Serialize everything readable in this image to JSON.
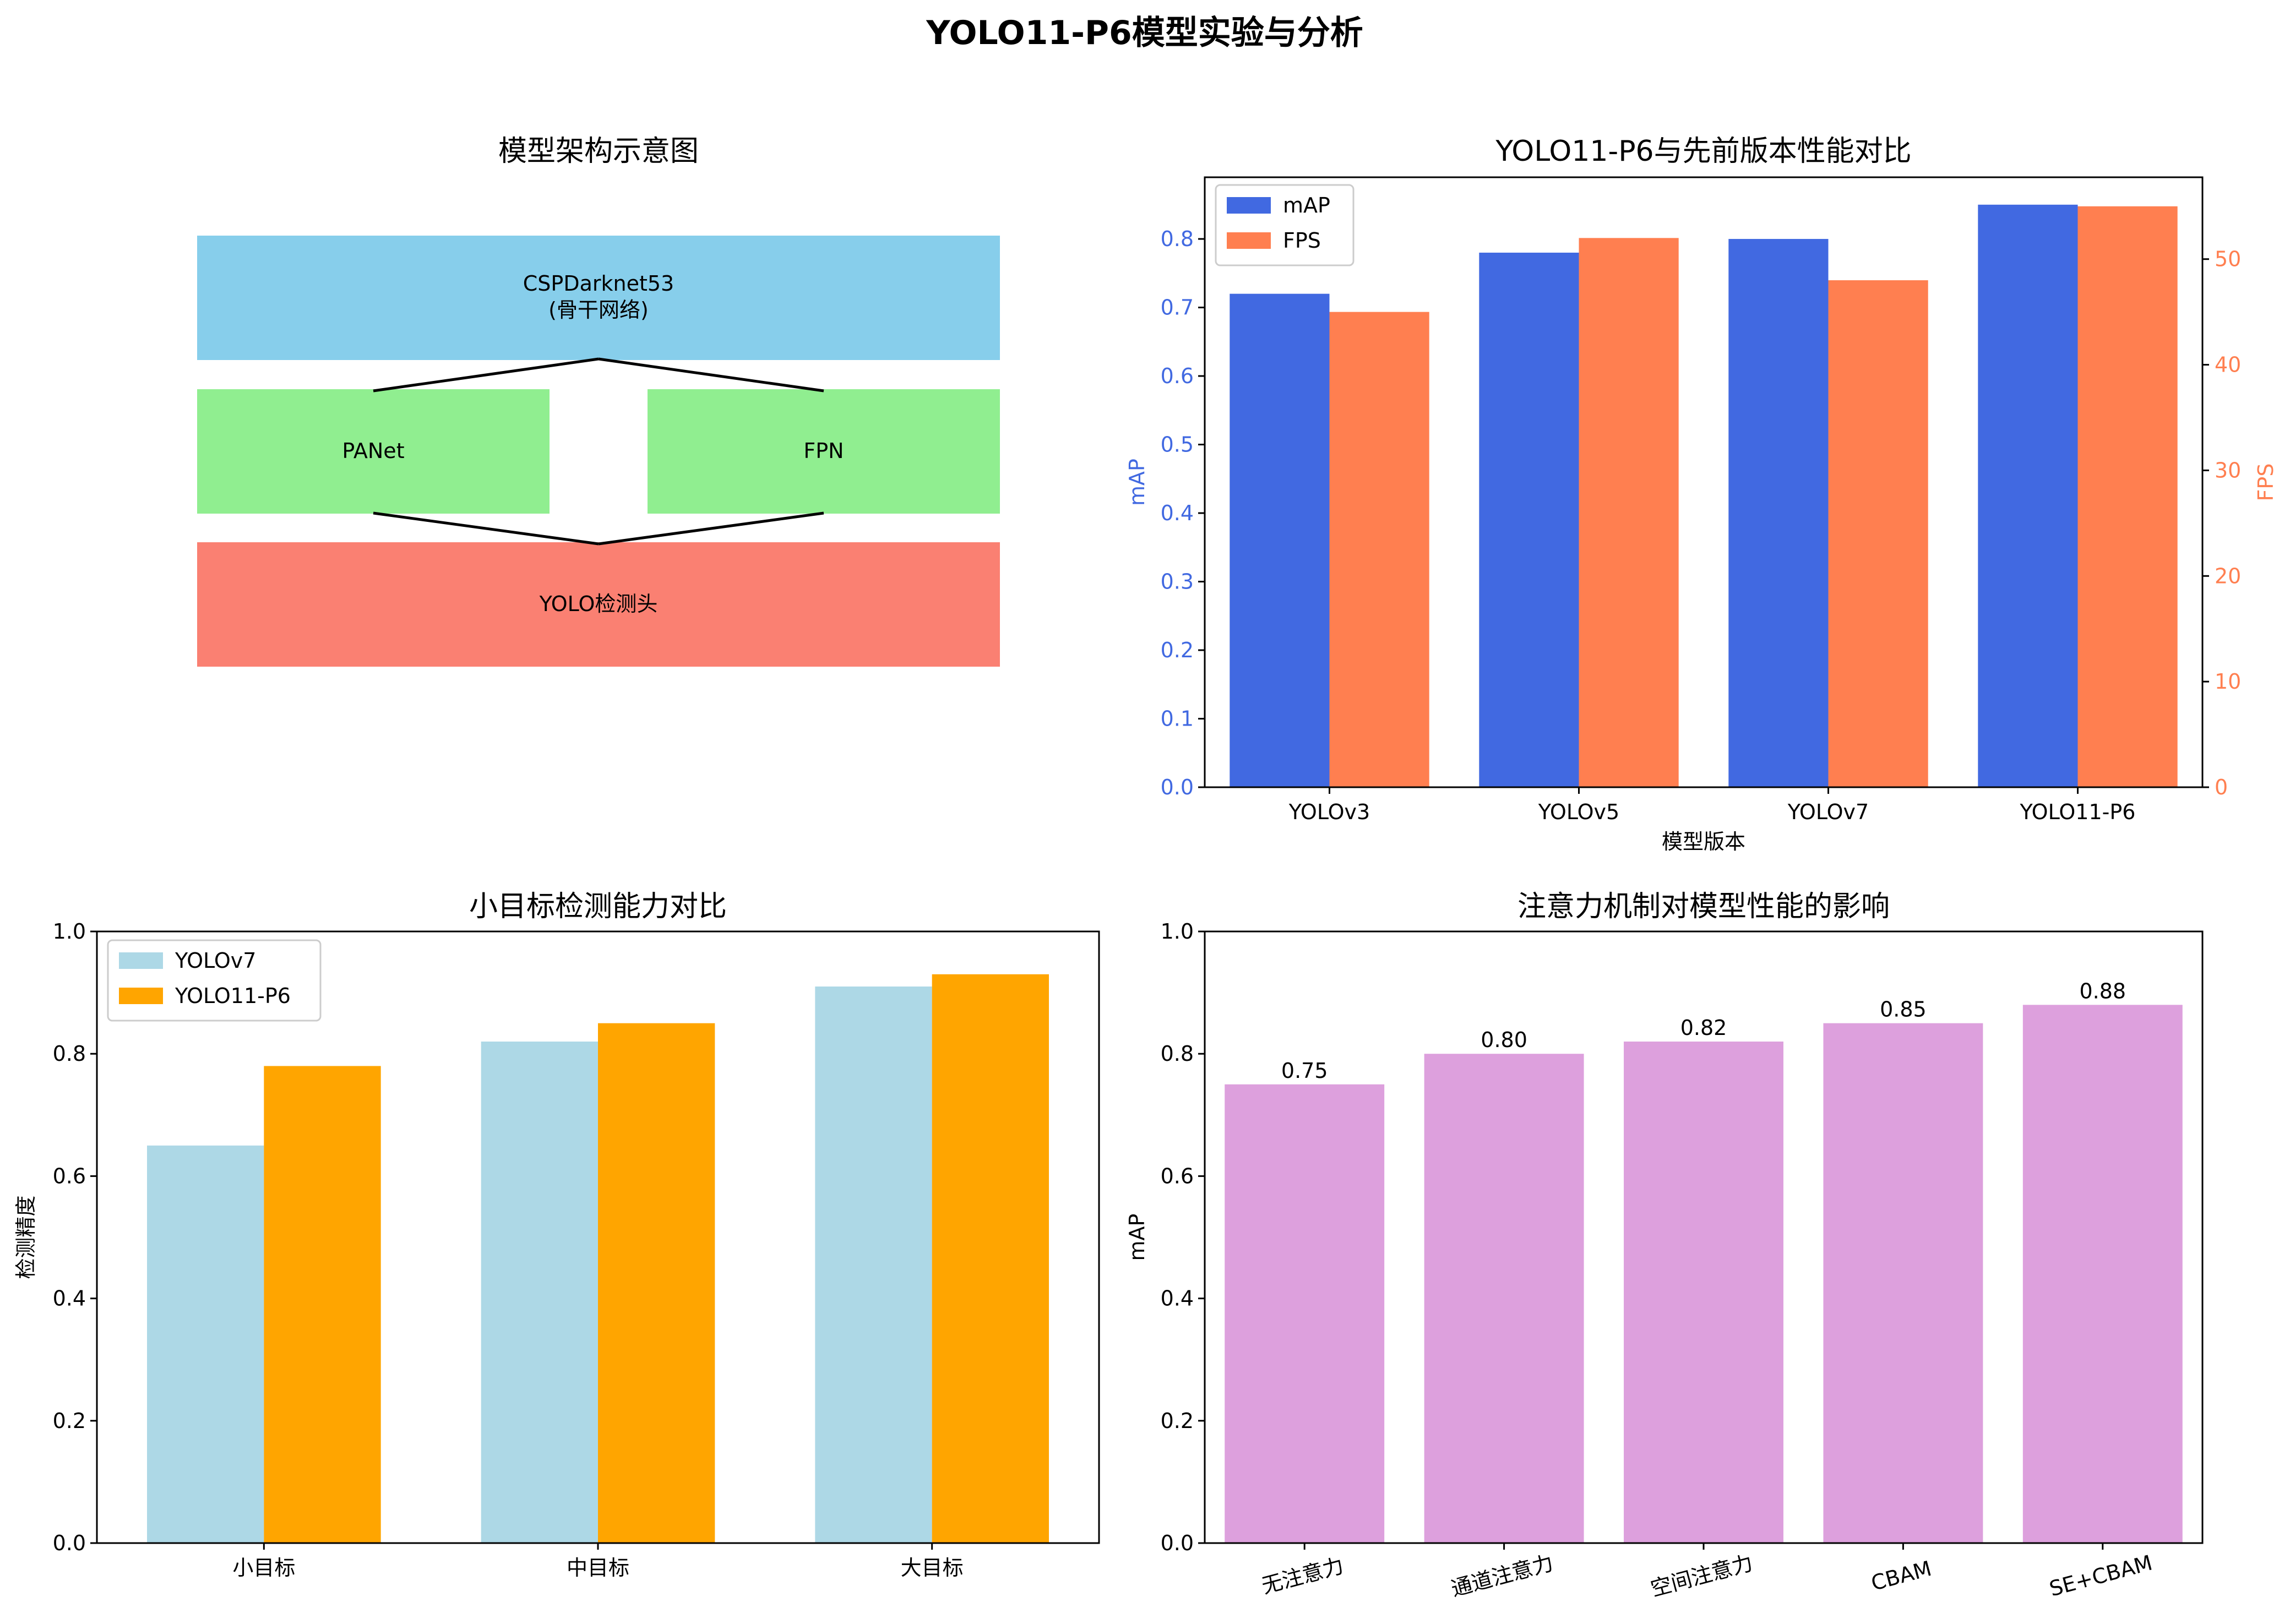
{
  "suptitle": "YOLO11-P6模型实验与分析",
  "architecture": {
    "title": "模型架构示意图",
    "boxes": [
      {
        "id": "backbone",
        "line1": "CSPDarknet53",
        "line2": "(骨干网络)",
        "color": "#87CEEB"
      },
      {
        "id": "panet",
        "line1": "PANet",
        "line2": "",
        "color": "#90EE90"
      },
      {
        "id": "fpn",
        "line1": "FPN",
        "line2": "",
        "color": "#90EE90"
      },
      {
        "id": "head",
        "line1": "YOLO检测头",
        "line2": "",
        "color": "#FA8072"
      }
    ]
  },
  "chart_data": [
    {
      "id": "performance",
      "type": "bar",
      "title": "YOLO11-P6与先前版本性能对比",
      "xlabel": "模型版本",
      "ylabel": "mAP",
      "y2label": "FPS",
      "categories": [
        "YOLOv3",
        "YOLOv5",
        "YOLOv7",
        "YOLO11-P6"
      ],
      "series": [
        {
          "name": "mAP",
          "axis": "left",
          "values": [
            0.72,
            0.78,
            0.8,
            0.85
          ],
          "color": "#4169E1"
        },
        {
          "name": "FPS",
          "axis": "right",
          "values": [
            45,
            52,
            48,
            55
          ],
          "color": "#FF7F50"
        }
      ],
      "ylim": [
        0,
        0.89
      ],
      "y2lim": [
        0,
        57.75
      ],
      "yticks": [
        "0.0",
        "0.1",
        "0.2",
        "0.3",
        "0.4",
        "0.5",
        "0.6",
        "0.7",
        "0.8"
      ],
      "y2ticks": [
        "0",
        "10",
        "20",
        "30",
        "40",
        "50"
      ],
      "legend": "upper-left",
      "grid": false
    },
    {
      "id": "small-object",
      "type": "bar",
      "title": "小目标检测能力对比",
      "xlabel": "",
      "ylabel": "检测精度",
      "categories": [
        "小目标",
        "中目标",
        "大目标"
      ],
      "series": [
        {
          "name": "YOLOv7",
          "values": [
            0.65,
            0.82,
            0.91
          ],
          "color": "#ADD8E6"
        },
        {
          "name": "YOLO11-P6",
          "values": [
            0.78,
            0.85,
            0.93
          ],
          "color": "#FFA500"
        }
      ],
      "ylim": [
        0,
        1.0
      ],
      "yticks": [
        "0.0",
        "0.2",
        "0.4",
        "0.6",
        "0.8",
        "1.0"
      ],
      "legend": "upper-left",
      "grid": false
    },
    {
      "id": "attention",
      "type": "bar",
      "title": "注意力机制对模型性能的影响",
      "xlabel": "",
      "ylabel": "mAP",
      "categories": [
        "无注意力",
        "通道注意力",
        "空间注意力",
        "CBAM",
        "SE+CBAM"
      ],
      "values": [
        0.75,
        0.8,
        0.82,
        0.85,
        0.88
      ],
      "value_labels": [
        "0.75",
        "0.80",
        "0.82",
        "0.85",
        "0.88"
      ],
      "color": "#DDA0DD",
      "ylim": [
        0,
        1.0
      ],
      "yticks": [
        "0.0",
        "0.2",
        "0.4",
        "0.6",
        "0.8",
        "1.0"
      ],
      "xtick_rotation": -15,
      "grid": false
    }
  ]
}
